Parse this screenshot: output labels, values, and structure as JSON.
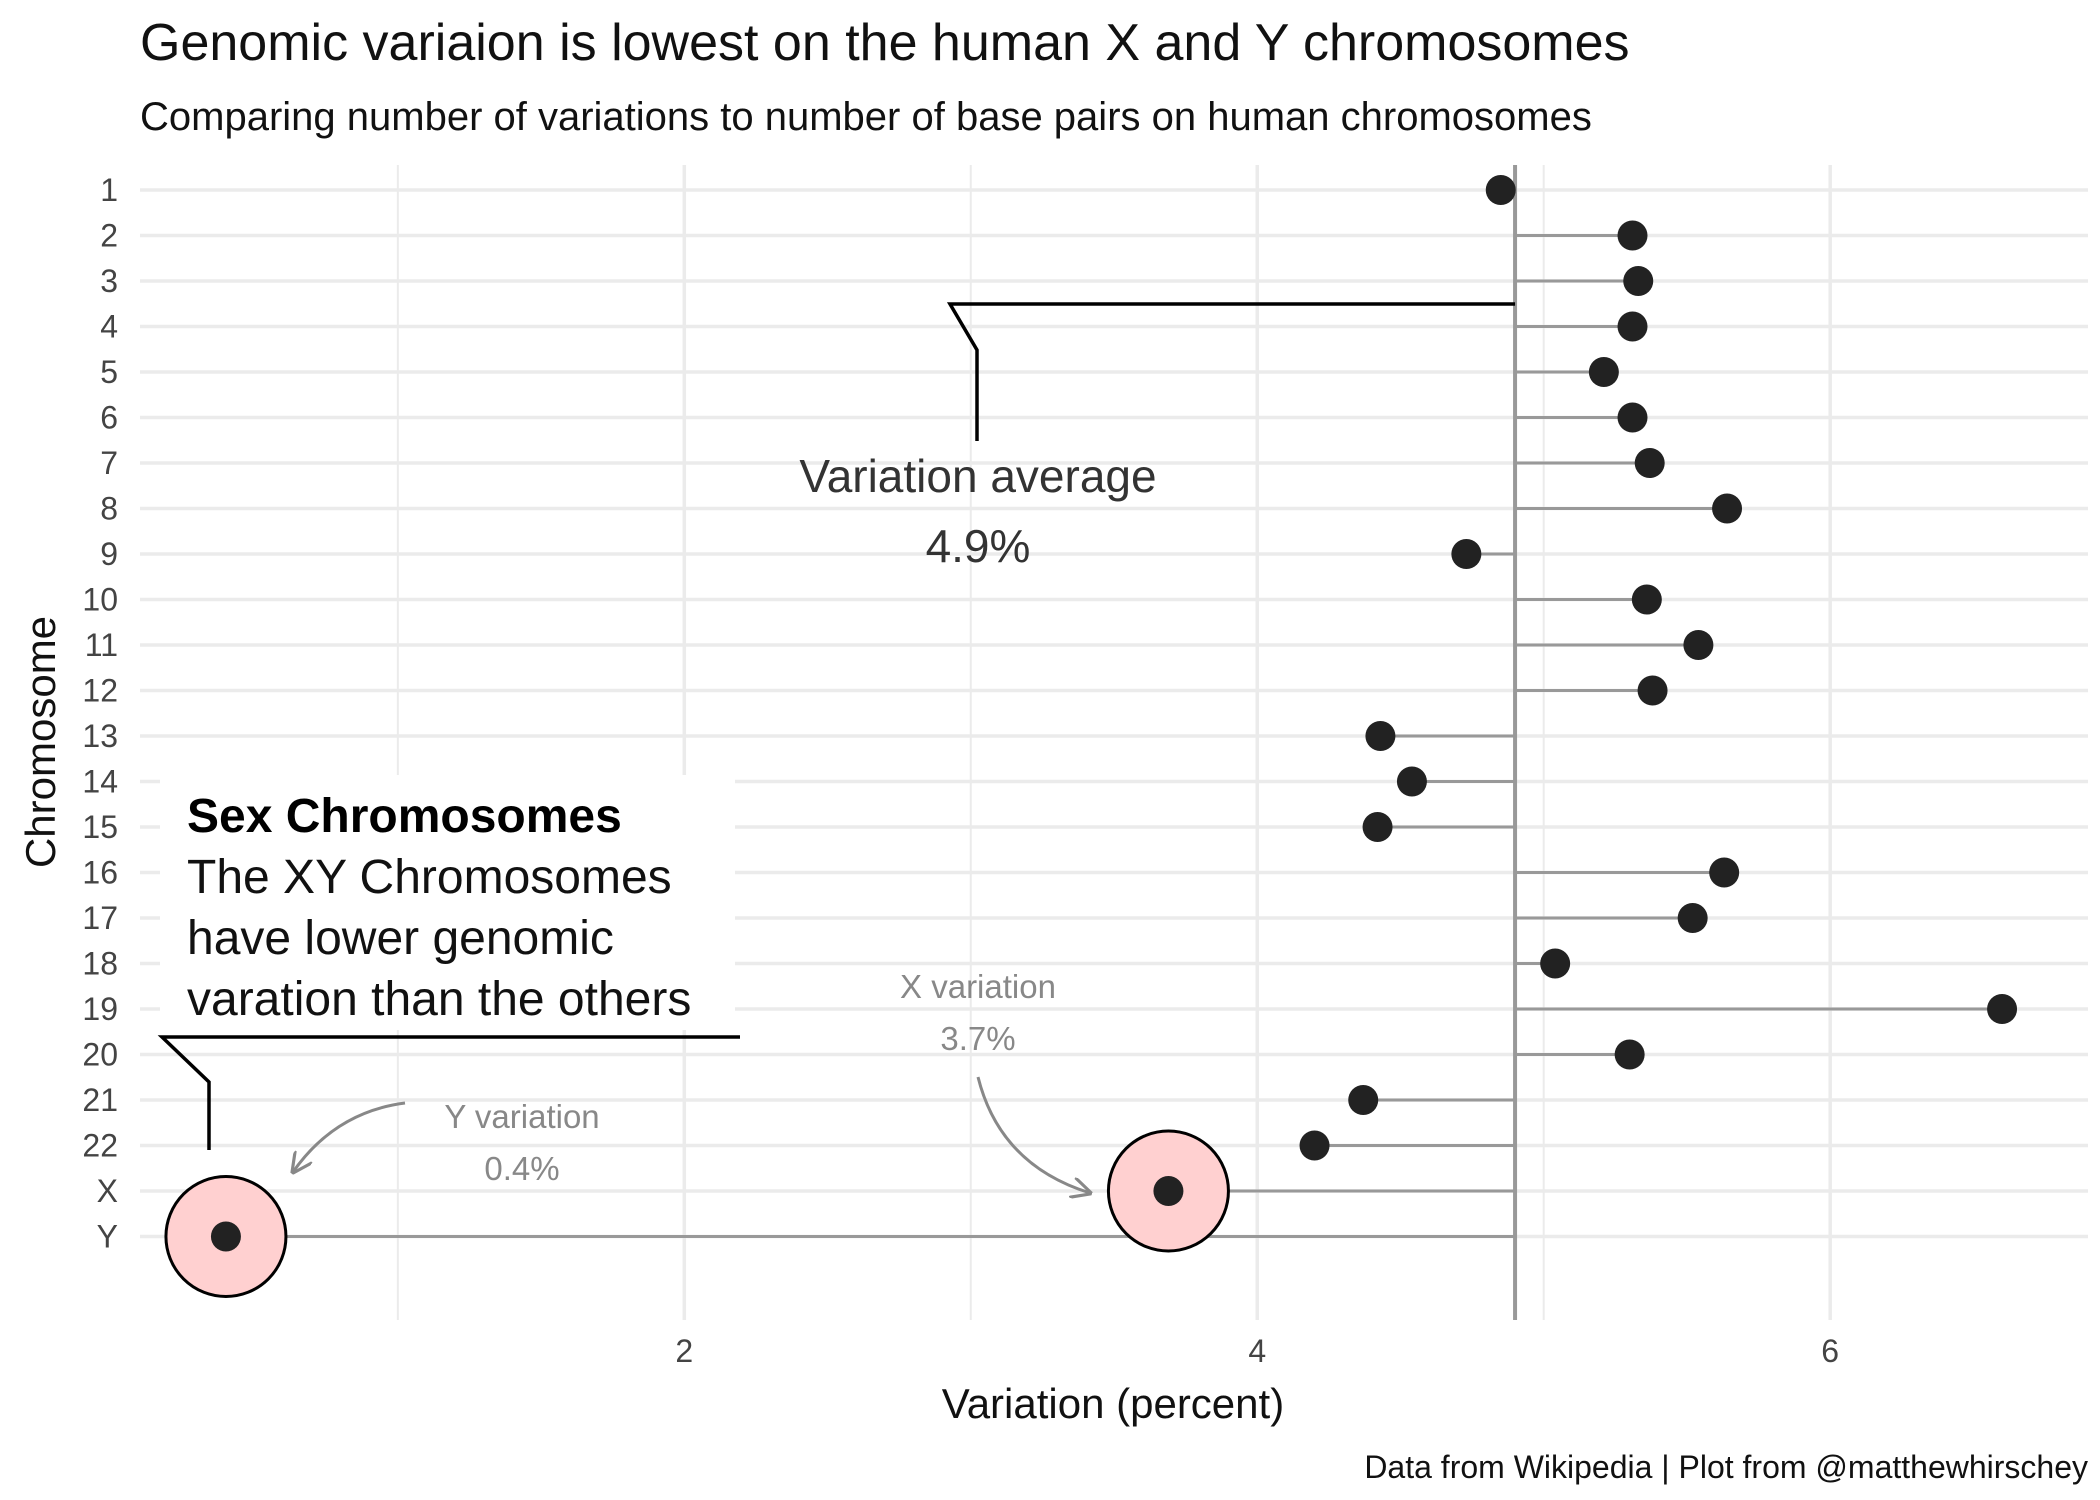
{
  "chart_data": {
    "type": "scatter",
    "title": "Genomic variaion is lowest on the human X and Y chromosomes",
    "subtitle": "Comparing number of variations to number of base pairs on human chromosomes",
    "xlabel": "Variation (percent)",
    "ylabel": "Chromosome",
    "caption": "Data from Wikipedia | Plot from @matthewhirschey",
    "xlim": [
      0.1,
      6.9
    ],
    "x_ticks": [
      2,
      4,
      6
    ],
    "grid": true,
    "categories": [
      "1",
      "2",
      "3",
      "4",
      "5",
      "6",
      "7",
      "8",
      "9",
      "10",
      "11",
      "12",
      "13",
      "14",
      "15",
      "16",
      "17",
      "18",
      "19",
      "20",
      "21",
      "22",
      "X",
      "Y"
    ],
    "values": [
      4.85,
      5.31,
      5.33,
      5.31,
      5.21,
      5.31,
      5.37,
      5.64,
      4.73,
      5.36,
      5.54,
      5.38,
      4.43,
      4.54,
      4.42,
      5.63,
      5.52,
      5.04,
      6.6,
      5.3,
      4.37,
      4.2,
      3.69,
      0.4
    ],
    "average": 4.9,
    "highlighted": [
      "X",
      "Y"
    ],
    "annotations": {
      "average": {
        "label": "Variation average",
        "value": "4.9%"
      },
      "x_variation": {
        "label": "X variation",
        "value": "3.7%"
      },
      "y_variation": {
        "label": "Y variation",
        "value": "0.4%"
      },
      "sex_box": {
        "heading": "Sex Chromosomes",
        "lines": [
          "The XY Chromosomes",
          "have lower genomic",
          "varation than the others"
        ]
      }
    },
    "colors": {
      "point": "#222222",
      "segment": "#999999",
      "highlight_fill": "#ffd0d0",
      "grid": "#ebebeb"
    }
  }
}
